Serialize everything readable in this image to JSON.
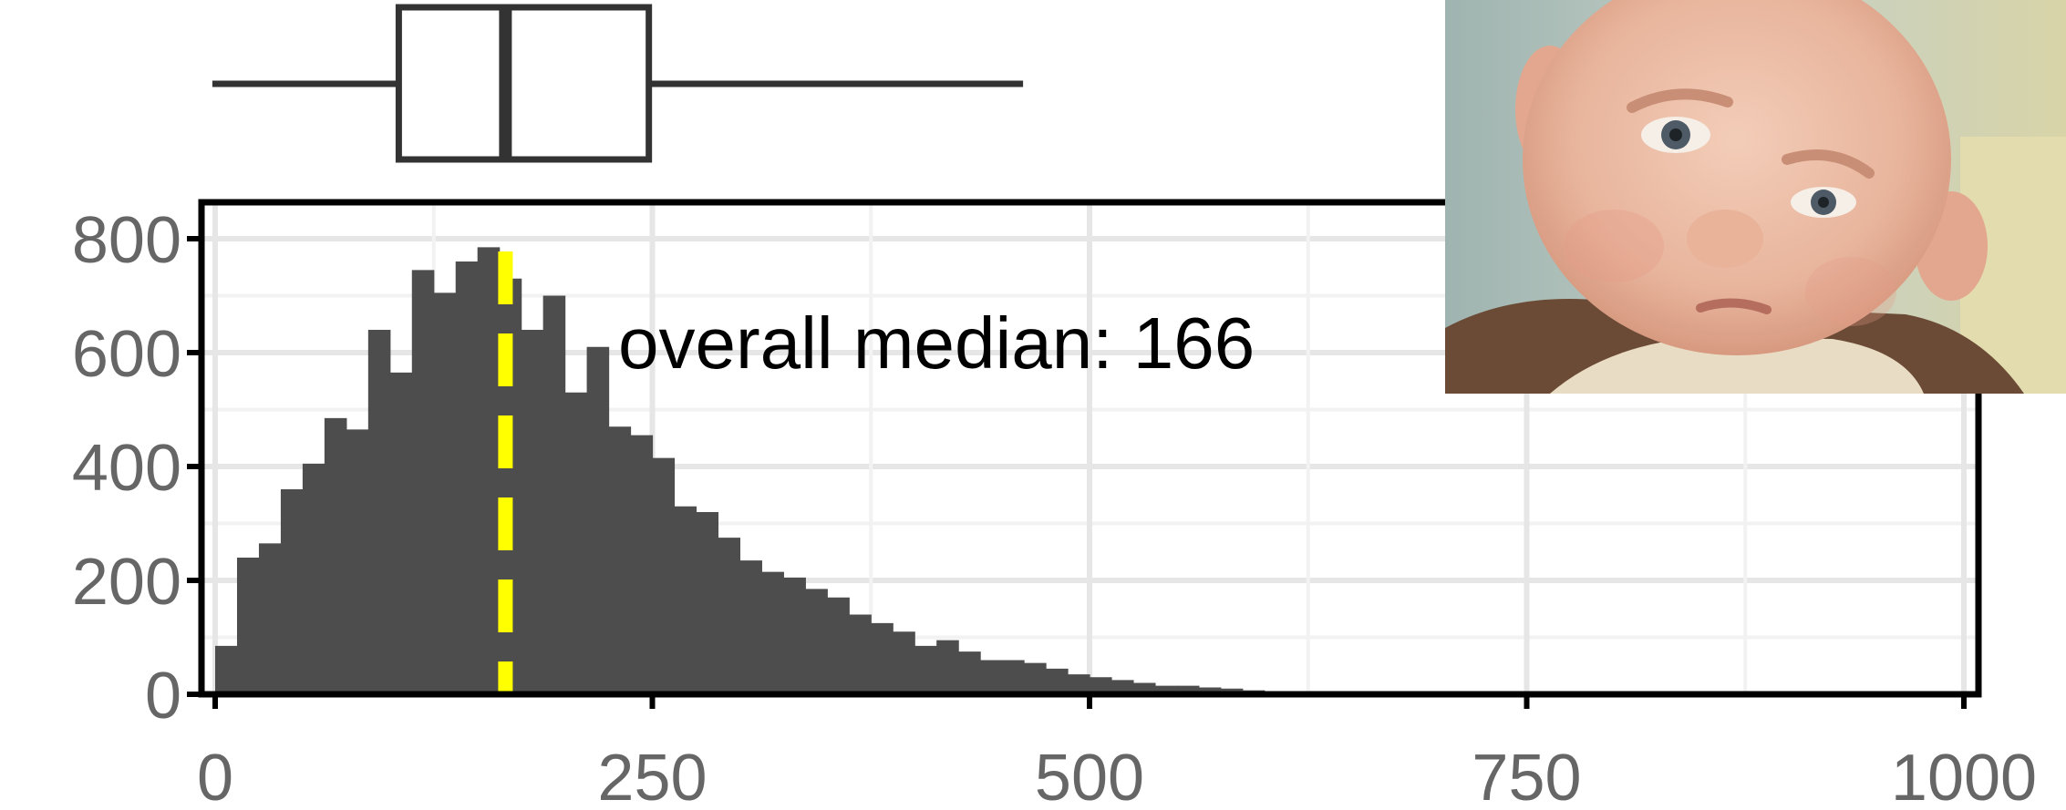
{
  "chart_data": {
    "type": "bar",
    "xlabel": "",
    "ylabel": "",
    "xlim": [
      0,
      1000
    ],
    "ylim": [
      0,
      800
    ],
    "x_ticks": [
      "0",
      "250",
      "500",
      "750",
      "1000"
    ],
    "y_ticks": [
      "0",
      "200",
      "400",
      "600",
      "800"
    ],
    "grid": true,
    "bin_width": 12.5,
    "bin_starts": [
      0,
      12.5,
      25,
      37.5,
      50,
      62.5,
      75,
      87.5,
      100,
      112.5,
      125,
      137.5,
      150,
      162.5,
      175,
      187.5,
      200,
      212.5,
      225,
      237.5,
      250,
      262.5,
      275,
      287.5,
      300,
      312.5,
      325,
      337.5,
      350,
      362.5,
      375,
      387.5,
      400,
      412.5,
      425,
      437.5,
      450,
      462.5,
      475,
      487.5,
      500,
      512.5,
      525,
      537.5,
      550,
      562.5,
      575,
      587.5,
      600,
      612.5,
      625,
      637.5,
      650
    ],
    "counts": [
      85,
      240,
      265,
      360,
      405,
      485,
      465,
      640,
      565,
      745,
      705,
      760,
      785,
      730,
      640,
      700,
      530,
      610,
      470,
      455,
      415,
      330,
      320,
      275,
      235,
      215,
      205,
      185,
      170,
      140,
      125,
      110,
      85,
      95,
      75,
      60,
      60,
      55,
      45,
      35,
      30,
      25,
      20,
      15,
      15,
      12,
      10,
      7,
      5,
      4,
      3,
      2,
      1
    ],
    "median_line": {
      "value": 166,
      "color": "#ffff00"
    },
    "annotation": "overall median: 166",
    "boxplot": {
      "q1": 105,
      "median": 166,
      "q3": 248,
      "whisker_low": 1,
      "whisker_high": 462
    },
    "bar_color": "#4d4d4d"
  },
  "photo": {
    "subject": "skeptical-baby-meme"
  }
}
